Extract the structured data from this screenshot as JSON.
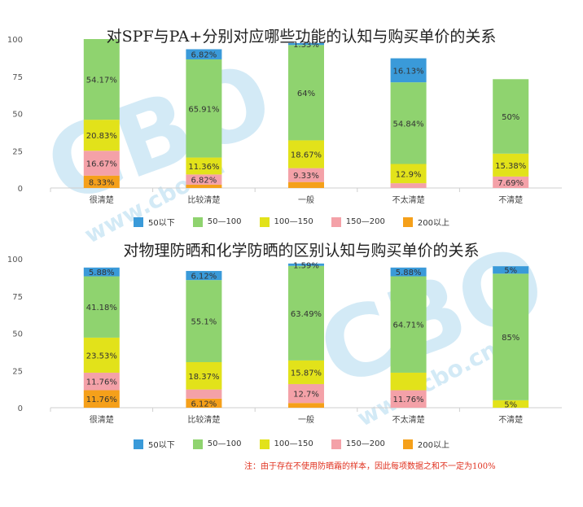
{
  "colors": {
    "s50below": "#3a9ad9",
    "s50_100": "#8fd36f",
    "s100_150": "#e2e21a",
    "s150_200": "#f4a1a8",
    "s200above": "#f5a01a",
    "footnote": "#e0301e"
  },
  "watermark": {
    "logo": "CBO",
    "url": "www.cbo.cn"
  },
  "footnote": "注：由于存在不使用防晒霜的样本，因此每项数据之和不一定为100%",
  "chart_data": [
    {
      "type": "bar",
      "stacked": true,
      "title": "对SPF与PA+分别对应哪些功能的认知与购买单价的关系",
      "categories": [
        "很清楚",
        "比较清楚",
        "一般",
        "不太清楚",
        "不清楚"
      ],
      "ylim": [
        0,
        100
      ],
      "yticks": [
        "0",
        "25",
        "50",
        "75",
        "100"
      ],
      "legend_position": "bottom",
      "series": [
        {
          "name": "200以上",
          "color_key": "s200above",
          "values": [
            8.33,
            2.27,
            4,
            0,
            0
          ],
          "labels": [
            "8.33%",
            "",
            "",
            "",
            ""
          ]
        },
        {
          "name": "150—200",
          "color_key": "s150_200",
          "values": [
            16.67,
            6.82,
            9.33,
            3.22,
            7.69
          ],
          "labels": [
            "16.67%",
            "6.82%",
            "9.33%",
            "",
            "7.69%"
          ]
        },
        {
          "name": "100—150",
          "color_key": "s100_150",
          "values": [
            20.83,
            11.36,
            18.67,
            12.9,
            15.38
          ],
          "labels": [
            "20.83%",
            "11.36%",
            "18.67%",
            "12.9%",
            "15.38%"
          ]
        },
        {
          "name": "50—100",
          "color_key": "s50_100",
          "values": [
            54.17,
            65.91,
            64,
            54.84,
            50
          ],
          "labels": [
            "54.17%",
            "65.91%",
            "64%",
            "54.84%",
            "50%"
          ]
        },
        {
          "name": "50以下",
          "color_key": "s50below",
          "values": [
            0,
            6.82,
            1.33,
            16.13,
            0
          ],
          "labels": [
            "",
            "6.82%",
            "1.33%",
            "16.13%",
            ""
          ]
        }
      ]
    },
    {
      "type": "bar",
      "stacked": true,
      "title": "对物理防晒和化学防晒的区别认知与购买单价的关系",
      "categories": [
        "很清楚",
        "比较清楚",
        "一般",
        "不太清楚",
        "不清楚"
      ],
      "ylim": [
        0,
        100
      ],
      "yticks": [
        "0",
        "25",
        "50",
        "75",
        "100"
      ],
      "legend_position": "bottom",
      "series": [
        {
          "name": "200以上",
          "color_key": "s200above",
          "values": [
            11.76,
            6.12,
            3.17,
            0,
            0
          ],
          "labels": [
            "11.76%",
            "6.12%",
            "",
            "",
            ""
          ]
        },
        {
          "name": "150—200",
          "color_key": "s150_200",
          "values": [
            11.76,
            6.12,
            12.7,
            11.76,
            0
          ],
          "labels": [
            "11.76%",
            "",
            "12.7%",
            "11.76%",
            ""
          ]
        },
        {
          "name": "100—150",
          "color_key": "s100_150",
          "values": [
            23.53,
            18.37,
            15.87,
            11.76,
            5
          ],
          "labels": [
            "23.53%",
            "18.37%",
            "15.87%",
            "",
            "5%"
          ]
        },
        {
          "name": "50—100",
          "color_key": "s50_100",
          "values": [
            41.18,
            55.1,
            63.49,
            64.71,
            85
          ],
          "labels": [
            "41.18%",
            "55.1%",
            "63.49%",
            "64.71%",
            "85%"
          ]
        },
        {
          "name": "50以下",
          "color_key": "s50below",
          "values": [
            5.88,
            6.12,
            1.59,
            5.88,
            5
          ],
          "labels": [
            "5.88%",
            "6.12%",
            "1.59%",
            "5.88%",
            "5%"
          ]
        }
      ]
    }
  ]
}
